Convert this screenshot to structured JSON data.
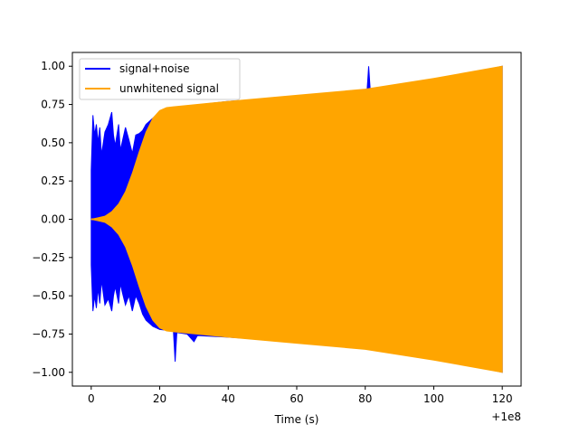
{
  "chart_data": {
    "type": "line",
    "title": "",
    "xlabel": "Time (s)",
    "ylabel": "",
    "x_offset_label": "+1e8",
    "xlim": [
      -5.5,
      125.5
    ],
    "ylim": [
      -1.09,
      1.09
    ],
    "xticks": [
      0,
      20,
      40,
      60,
      80,
      100,
      120
    ],
    "yticks": [
      -1.0,
      -0.75,
      -0.5,
      -0.25,
      0.0,
      0.25,
      0.5,
      0.75,
      1.0
    ],
    "xtick_labels": [
      "0",
      "20",
      "40",
      "60",
      "80",
      "100",
      "120"
    ],
    "ytick_labels": [
      "−1.00",
      "−0.75",
      "−0.50",
      "−0.25",
      "0.00",
      "0.25",
      "0.50",
      "0.75",
      "1.00"
    ],
    "grid": false,
    "legend_position": "top-left",
    "series": [
      {
        "name": "signal+noise",
        "color": "#0000ff",
        "upper": [
          [
            0,
            0.32
          ],
          [
            0.5,
            0.68
          ],
          [
            1,
            0.55
          ],
          [
            1.5,
            0.62
          ],
          [
            2,
            0.5
          ],
          [
            2.5,
            0.6
          ],
          [
            3,
            0.42
          ],
          [
            4,
            0.57
          ],
          [
            5,
            0.62
          ],
          [
            6,
            0.7
          ],
          [
            6.5,
            0.55
          ],
          [
            7,
            0.48
          ],
          [
            8,
            0.62
          ],
          [
            8.5,
            0.45
          ],
          [
            9,
            0.5
          ],
          [
            10,
            0.6
          ],
          [
            11,
            0.52
          ],
          [
            12,
            0.43
          ],
          [
            13,
            0.55
          ],
          [
            14,
            0.56
          ],
          [
            15,
            0.58
          ],
          [
            16,
            0.62
          ],
          [
            18,
            0.66
          ],
          [
            20,
            0.7
          ],
          [
            22,
            0.72
          ],
          [
            24,
            0.73
          ],
          [
            40,
            0.77
          ],
          [
            60,
            0.8
          ],
          [
            80.5,
            0.83
          ],
          [
            81,
            1.0
          ],
          [
            81.5,
            0.83
          ],
          [
            100,
            0.9
          ],
          [
            120,
            1.0
          ]
        ],
        "lower": [
          [
            0,
            -0.3
          ],
          [
            0.5,
            -0.6
          ],
          [
            1,
            -0.5
          ],
          [
            1.5,
            -0.58
          ],
          [
            2,
            -0.45
          ],
          [
            2.5,
            -0.55
          ],
          [
            3,
            -0.4
          ],
          [
            4,
            -0.56
          ],
          [
            5,
            -0.52
          ],
          [
            6,
            -0.6
          ],
          [
            6.5,
            -0.5
          ],
          [
            7,
            -0.44
          ],
          [
            8,
            -0.55
          ],
          [
            8.5,
            -0.42
          ],
          [
            9,
            -0.47
          ],
          [
            10,
            -0.56
          ],
          [
            11,
            -0.5
          ],
          [
            12,
            -0.6
          ],
          [
            13,
            -0.5
          ],
          [
            14,
            -0.55
          ],
          [
            15,
            -0.62
          ],
          [
            16,
            -0.66
          ],
          [
            18,
            -0.7
          ],
          [
            20,
            -0.72
          ],
          [
            24,
            -0.73
          ],
          [
            24.5,
            -0.93
          ],
          [
            25,
            -0.74
          ],
          [
            28,
            -0.75
          ],
          [
            30,
            -0.8
          ],
          [
            31,
            -0.76
          ],
          [
            40,
            -0.77
          ],
          [
            60,
            -0.8
          ],
          [
            80,
            -0.83
          ],
          [
            100,
            -0.9
          ],
          [
            120,
            -1.0
          ]
        ]
      },
      {
        "name": "unwhitened signal",
        "color": "#ffa500",
        "upper": [
          [
            0,
            0.0
          ],
          [
            2,
            0.01
          ],
          [
            4,
            0.02
          ],
          [
            6,
            0.05
          ],
          [
            8,
            0.1
          ],
          [
            10,
            0.18
          ],
          [
            12,
            0.3
          ],
          [
            14,
            0.44
          ],
          [
            16,
            0.57
          ],
          [
            18,
            0.66
          ],
          [
            20,
            0.71
          ],
          [
            22,
            0.73
          ],
          [
            24,
            0.735
          ],
          [
            40,
            0.77
          ],
          [
            60,
            0.81
          ],
          [
            80,
            0.85
          ],
          [
            100,
            0.92
          ],
          [
            120,
            1.0
          ]
        ],
        "lower": [
          [
            0,
            0.0
          ],
          [
            2,
            -0.01
          ],
          [
            4,
            -0.02
          ],
          [
            6,
            -0.05
          ],
          [
            8,
            -0.1
          ],
          [
            10,
            -0.18
          ],
          [
            12,
            -0.3
          ],
          [
            14,
            -0.44
          ],
          [
            16,
            -0.57
          ],
          [
            18,
            -0.66
          ],
          [
            20,
            -0.71
          ],
          [
            22,
            -0.73
          ],
          [
            24,
            -0.735
          ],
          [
            40,
            -0.77
          ],
          [
            60,
            -0.81
          ],
          [
            80,
            -0.85
          ],
          [
            100,
            -0.92
          ],
          [
            120,
            -1.0
          ]
        ],
        "line_y": [
          [
            0,
            0.0
          ],
          [
            2,
            0.0
          ],
          [
            4,
            0.0
          ]
        ]
      }
    ]
  }
}
